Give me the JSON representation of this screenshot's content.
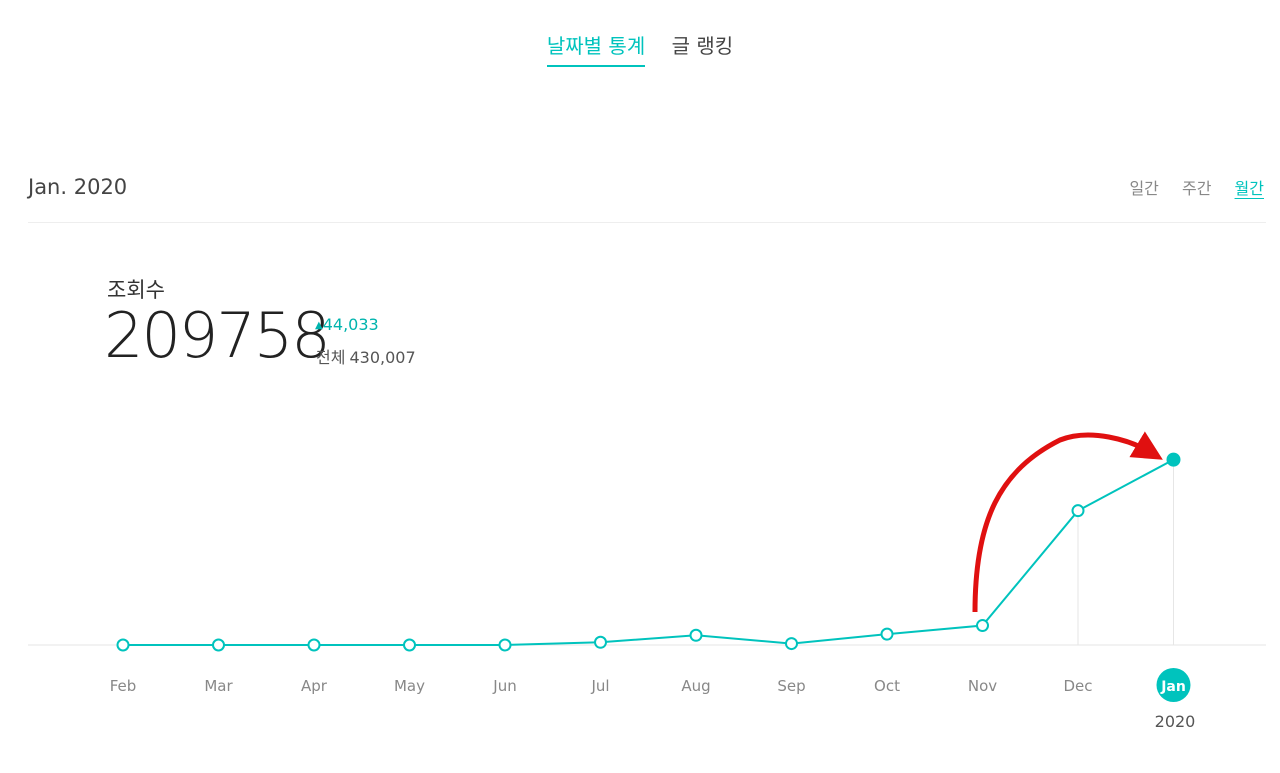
{
  "top_tabs": [
    {
      "label": "날짜별 통계",
      "active": true
    },
    {
      "label": "글 랭킹",
      "active": false
    }
  ],
  "period_label": "Jan. 2020",
  "range_tabs": [
    {
      "label": "일간",
      "active": false
    },
    {
      "label": "주간",
      "active": false
    },
    {
      "label": "월간",
      "active": true
    }
  ],
  "metric": {
    "label": "조회수",
    "value": "209758",
    "delta": "44,033",
    "total_label": "전체",
    "total_value": "430,007"
  },
  "colors": {
    "accent": "#00c3bd",
    "annotation": "#e01010"
  },
  "chart_data": {
    "type": "line",
    "x": [
      "Feb",
      "Mar",
      "Apr",
      "May",
      "Jun",
      "Jul",
      "Aug",
      "Sep",
      "Oct",
      "Nov",
      "Dec",
      "Jan"
    ],
    "series": [
      {
        "values": [
          0,
          0,
          0,
          0,
          0,
          3100,
          11000,
          1600,
          12300,
          22000,
          152000,
          209758
        ]
      }
    ],
    "selected_index": 11,
    "selected_year": "2020",
    "ylim": [
      0,
      215000
    ],
    "grid": false
  }
}
